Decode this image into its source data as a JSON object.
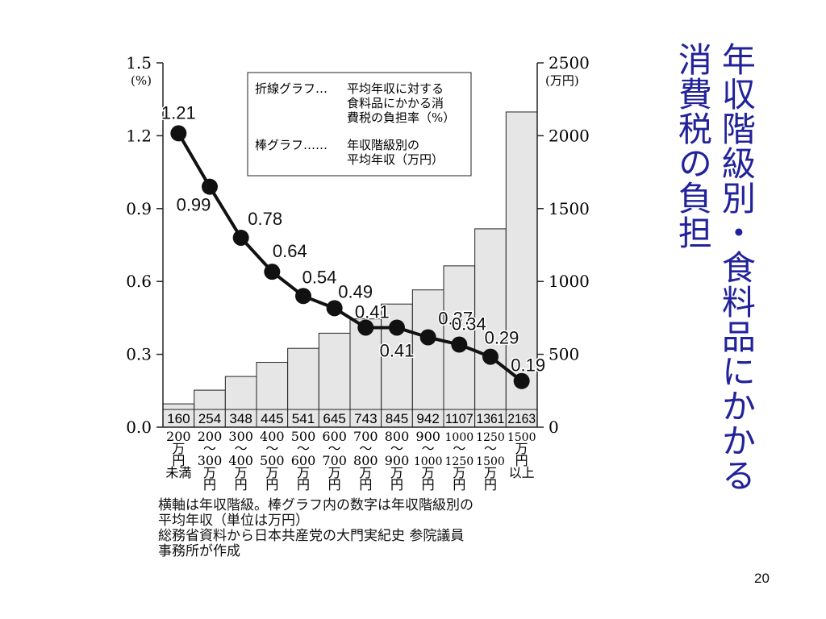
{
  "slide": {
    "title_lines": [
      "年収階級別・食料品にかかる",
      "消費税の負担"
    ],
    "page_number": "20"
  },
  "notes": [
    "横軸は年収階級。棒グラフ内の数字は年収階級別の",
    "平均年収（単位は万円）",
    "総務省資料から日本共産党の大門実紀史 参院議員",
    "事務所が作成"
  ],
  "legend": {
    "line_key": "折線グラフ…",
    "line_desc": [
      "平均年収に対する",
      "食料品にかかる消",
      "費税の負担率（%）"
    ],
    "bar_key": "棒グラフ……",
    "bar_desc": [
      "年収階級別の",
      "平均年収（万円）"
    ]
  },
  "chart_data": {
    "type": "bar+line",
    "left_axis": {
      "unit": "(%)",
      "ylim": [
        0,
        1.5
      ],
      "ticks": [
        "0.0",
        "0.3",
        "0.6",
        "0.9",
        "1.2",
        "1.5"
      ]
    },
    "right_axis": {
      "unit": "(万円)",
      "ylim": [
        0,
        2500
      ],
      "ticks": [
        "0",
        "500",
        "1000",
        "1500",
        "2000",
        "2500"
      ]
    },
    "categories": [
      [
        "200",
        "万",
        "円",
        "未満"
      ],
      [
        "200",
        "〜",
        "300",
        "万",
        "円"
      ],
      [
        "300",
        "〜",
        "400",
        "万",
        "円"
      ],
      [
        "400",
        "〜",
        "500",
        "万",
        "円"
      ],
      [
        "500",
        "〜",
        "600",
        "万",
        "円"
      ],
      [
        "600",
        "〜",
        "700",
        "万",
        "円"
      ],
      [
        "700",
        "〜",
        "800",
        "万",
        "円"
      ],
      [
        "800",
        "〜",
        "900",
        "万",
        "円"
      ],
      [
        "900",
        "〜",
        "1000",
        "万",
        "円"
      ],
      [
        "1000",
        "〜",
        "1250",
        "万",
        "円"
      ],
      [
        "1250",
        "〜",
        "1500",
        "万",
        "円"
      ],
      [
        "1500",
        "万",
        "円",
        "以上"
      ]
    ],
    "bar_values": [
      160,
      254,
      348,
      445,
      541,
      645,
      743,
      845,
      942,
      1107,
      1361,
      2163
    ],
    "bar_labels": [
      "160",
      "254",
      "348",
      "445",
      "541",
      "645",
      "743",
      "845",
      "942",
      "1107",
      "1361",
      "2163"
    ],
    "line_values": [
      1.21,
      0.99,
      0.78,
      0.64,
      0.54,
      0.49,
      0.41,
      0.41,
      0.37,
      0.34,
      0.29,
      0.19
    ],
    "line_labels": [
      "1.21",
      "0.99",
      "0.78",
      "0.64",
      "0.54",
      "0.49",
      "0.41",
      "0.41",
      "0.37",
      "0.34",
      "0.29",
      "0.19"
    ],
    "colors": {
      "bar_fill": "#e6e6e6",
      "bar_stroke": "#222222",
      "line": "#111111",
      "marker": "#111111"
    }
  }
}
